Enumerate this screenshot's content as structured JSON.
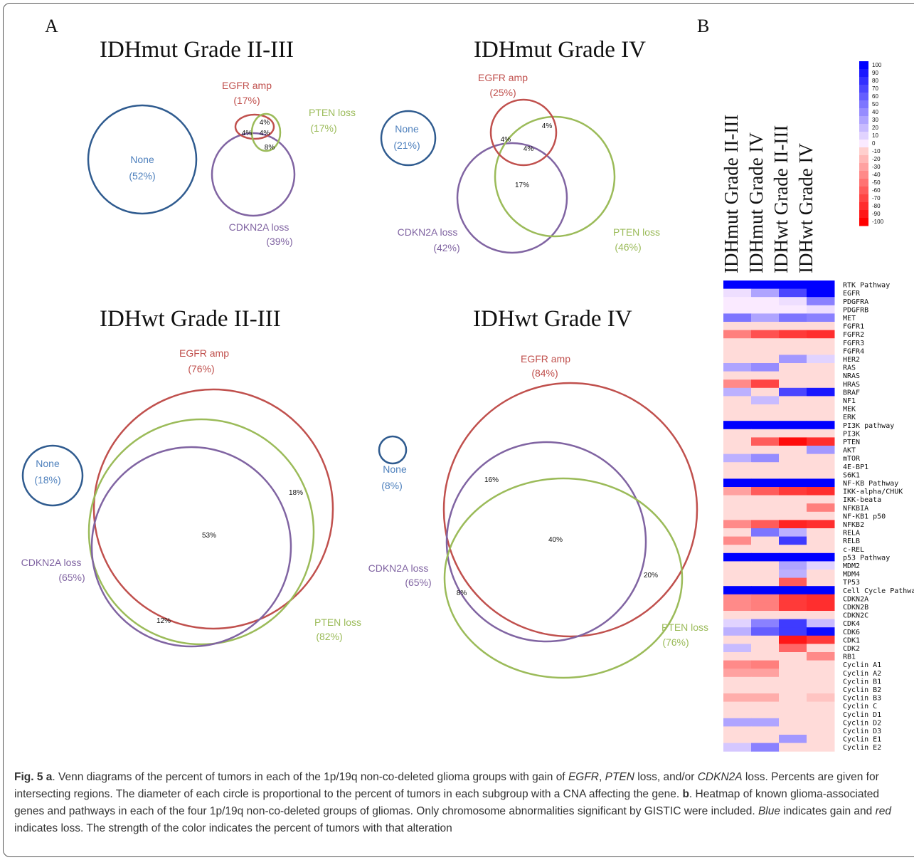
{
  "panels": {
    "a": "A",
    "b": "B"
  },
  "venn": [
    {
      "title": "IDHmut Grade II-III",
      "none": {
        "name": "None",
        "pct": "(52%)"
      },
      "egfr": {
        "name": "EGFR amp",
        "pct": "(17%)"
      },
      "pten": {
        "name": "PTEN loss",
        "pct": "(17%)"
      },
      "cdkn2a": {
        "name": "CDKN2A loss",
        "pct": "(39%)"
      },
      "regions": [
        "4%",
        "4%",
        "4%",
        "8%"
      ]
    },
    {
      "title": "IDHmut Grade IV",
      "none": {
        "name": "None",
        "pct": "(21%)"
      },
      "egfr": {
        "name": "EGFR amp",
        "pct": "(25%)"
      },
      "pten": {
        "name": "PTEN loss",
        "pct": "(46%)"
      },
      "cdkn2a": {
        "name": "CDKN2A loss",
        "pct": "(42%)"
      },
      "regions": [
        "4%",
        "4%",
        "4%",
        "17%"
      ]
    },
    {
      "title": "IDHwt Grade II-III",
      "none": {
        "name": "None",
        "pct": "(18%)"
      },
      "egfr": {
        "name": "EGFR amp",
        "pct": "(76%)"
      },
      "pten": {
        "name": "PTEN loss",
        "pct": "(82%)"
      },
      "cdkn2a": {
        "name": "CDKN2A loss",
        "pct": "(65%)"
      },
      "regions": [
        "18%",
        "53%",
        "12%"
      ]
    },
    {
      "title": "IDHwt Grade IV",
      "none": {
        "name": "None",
        "pct": "(8%)"
      },
      "egfr": {
        "name": "EGFR amp",
        "pct": "(84%)"
      },
      "pten": {
        "name": "PTEN loss",
        "pct": "(76%)"
      },
      "cdkn2a": {
        "name": "CDKN2A loss",
        "pct": "(65%)"
      },
      "regions": [
        "16%",
        "40%",
        "20%",
        "8%"
      ]
    }
  ],
  "colors": {
    "none": "#2f5b8f",
    "none_text": "#4f81bd",
    "egfr": "#c0504d",
    "pten": "#9bbb59",
    "cdkn2a": "#8064a2"
  },
  "chart_data": {
    "type": "heatmap",
    "columns": [
      "IDHmut Grade II-III",
      "IDHmut Grade IV",
      "IDHwt Grade II-III",
      "IDHwt Grade IV"
    ],
    "color_scale": {
      "min": -100,
      "max": 100,
      "ticks": [
        "100",
        "90",
        "80",
        "70",
        "60",
        "50",
        "40",
        "30",
        "20",
        "10",
        "0",
        "-10",
        "-20",
        "-30",
        "-40",
        "-50",
        "-60",
        "-70",
        "-80",
        "-90",
        "-100"
      ],
      "positive": "blue (gain)",
      "negative": "red (loss)"
    },
    "rows": [
      {
        "label": "RTK Pathway",
        "values": [
          100,
          100,
          100,
          100
        ]
      },
      {
        "label": "EGFR",
        "values": [
          5,
          30,
          70,
          100
        ]
      },
      {
        "label": "PDGFRA",
        "values": [
          0,
          0,
          5,
          45
        ]
      },
      {
        "label": "PDGFRB",
        "values": [
          0,
          0,
          0,
          5
        ]
      },
      {
        "label": "MET",
        "values": [
          50,
          30,
          50,
          45
        ]
      },
      {
        "label": "FGFR1",
        "values": [
          -5,
          -5,
          -5,
          -5
        ]
      },
      {
        "label": "FGFR2",
        "values": [
          -45,
          -65,
          -75,
          -80
        ]
      },
      {
        "label": "FGFR3",
        "values": [
          -5,
          -5,
          -5,
          -5
        ]
      },
      {
        "label": "FGFR4",
        "values": [
          -5,
          -5,
          -5,
          -5
        ]
      },
      {
        "label": "HER2",
        "values": [
          -5,
          -5,
          35,
          10
        ]
      },
      {
        "label": "RAS",
        "values": [
          30,
          40,
          -5,
          -5
        ]
      },
      {
        "label": "NRAS",
        "values": [
          -5,
          -5,
          -5,
          -5
        ]
      },
      {
        "label": "HRAS",
        "values": [
          -40,
          -70,
          -5,
          -5
        ]
      },
      {
        "label": "BRAF",
        "values": [
          25,
          -5,
          70,
          90
        ]
      },
      {
        "label": "NF1",
        "values": [
          -5,
          20,
          -5,
          -5
        ]
      },
      {
        "label": "MEK",
        "values": [
          -5,
          -5,
          -5,
          -5
        ]
      },
      {
        "label": "ERK",
        "values": [
          -5,
          -5,
          -5,
          -5
        ]
      },
      {
        "label": "PI3K pathway",
        "values": [
          100,
          100,
          100,
          100
        ]
      },
      {
        "label": "PI3K",
        "values": [
          -5,
          -5,
          -5,
          -5
        ]
      },
      {
        "label": "PTEN",
        "values": [
          -5,
          -60,
          -95,
          -80
        ]
      },
      {
        "label": "AKT",
        "values": [
          -5,
          -5,
          -5,
          35
        ]
      },
      {
        "label": "mTOR",
        "values": [
          25,
          40,
          -5,
          -5
        ]
      },
      {
        "label": "4E-BP1",
        "values": [
          -5,
          -5,
          -5,
          -5
        ]
      },
      {
        "label": "S6K1",
        "values": [
          -5,
          -5,
          -5,
          -5
        ]
      },
      {
        "label": "NF-KB Pathway",
        "values": [
          100,
          100,
          100,
          100
        ]
      },
      {
        "label": "IKK-alpha/CHUK",
        "values": [
          -30,
          -60,
          -75,
          -80
        ]
      },
      {
        "label": "IKK-beata",
        "values": [
          -5,
          -5,
          -5,
          -5
        ]
      },
      {
        "label": "NFKBIA",
        "values": [
          -5,
          -5,
          -5,
          -45
        ]
      },
      {
        "label": "NF-KB1 p50",
        "values": [
          -5,
          -5,
          -5,
          -5
        ]
      },
      {
        "label": "NFKB2",
        "values": [
          -40,
          -60,
          -85,
          -80
        ]
      },
      {
        "label": "RELA",
        "values": [
          -5,
          50,
          25,
          -5
        ]
      },
      {
        "label": "RELB",
        "values": [
          -40,
          -5,
          75,
          -5
        ]
      },
      {
        "label": "c-REL",
        "values": [
          -5,
          -5,
          -5,
          -5
        ]
      },
      {
        "label": "p53 Pathway",
        "values": [
          100,
          100,
          100,
          100
        ]
      },
      {
        "label": "MDM2",
        "values": [
          -5,
          -5,
          30,
          10
        ]
      },
      {
        "label": "MDM4",
        "values": [
          -5,
          -5,
          25,
          -5
        ]
      },
      {
        "label": "TP53",
        "values": [
          -5,
          -5,
          -60,
          -5
        ]
      },
      {
        "label": "Cell Cycle Pathway",
        "values": [
          100,
          100,
          100,
          100
        ]
      },
      {
        "label": "CDKN2A",
        "values": [
          -40,
          -45,
          -75,
          -80
        ]
      },
      {
        "label": "CDKN2B",
        "values": [
          -40,
          -45,
          -75,
          -80
        ]
      },
      {
        "label": "CDKN2C",
        "values": [
          -5,
          -5,
          -5,
          -5
        ]
      },
      {
        "label": "CDK4",
        "values": [
          10,
          45,
          75,
          20
        ]
      },
      {
        "label": "CDK6",
        "values": [
          25,
          60,
          75,
          95
        ]
      },
      {
        "label": "CDK1",
        "values": [
          -5,
          -5,
          -90,
          -75
        ]
      },
      {
        "label": "CDK2",
        "values": [
          20,
          -5,
          -55,
          -5
        ]
      },
      {
        "label": "RB1",
        "values": [
          -5,
          -5,
          -5,
          -40
        ]
      },
      {
        "label": "Cyclin A1",
        "values": [
          -40,
          -45,
          -5,
          -5
        ]
      },
      {
        "label": "Cyclin A2",
        "values": [
          -30,
          -30,
          -5,
          -5
        ]
      },
      {
        "label": "Cyclin B1",
        "values": [
          -5,
          -5,
          -5,
          -5
        ]
      },
      {
        "label": "Cyclin B2",
        "values": [
          -5,
          -5,
          -5,
          -5
        ]
      },
      {
        "label": "Cyclin B3",
        "values": [
          -25,
          -25,
          -5,
          -15
        ]
      },
      {
        "label": "Cyclin C",
        "values": [
          -5,
          -5,
          -5,
          -5
        ]
      },
      {
        "label": "Cyclin D1",
        "values": [
          -5,
          -5,
          -5,
          -5
        ]
      },
      {
        "label": "Cyclin D2",
        "values": [
          30,
          30,
          -5,
          -5
        ]
      },
      {
        "label": "Cyclin D3",
        "values": [
          -5,
          -5,
          -5,
          -5
        ]
      },
      {
        "label": "Cyclin E1",
        "values": [
          -5,
          -5,
          35,
          -5
        ]
      },
      {
        "label": "Cyclin E2",
        "values": [
          15,
          45,
          -5,
          -5
        ]
      }
    ]
  },
  "caption": {
    "fig": "Fig. 5",
    "a_letter": "a",
    "a_p1": ". Venn diagrams of the percent of tumors in each of the 1p/19q non-co-deleted glioma groups with gain of ",
    "a_egfr": "EGFR",
    "a_p2": ", ",
    "a_pten": "PTEN",
    "a_p3": " loss, and/or ",
    "a_cdkn2a": "CDKN2A",
    "a_p4": " loss. Percents are given for intersecting regions. The diameter of each circle is proportional to the percent of tumors in each subgroup with a CNA affecting the gene. ",
    "b_letter": "b",
    "b_p1": ". Heatmap of known glioma-associated genes and pathways in each of the four 1p/19q non-co-deleted groups of gliomas. Only chromosome abnormalities significant by GISTIC were included. ",
    "b_blue": "Blue",
    "b_p2": " indicates gain and ",
    "b_red": "red",
    "b_p3": " indicates loss. The strength of the color indicates the percent of tumors with that alteration"
  }
}
